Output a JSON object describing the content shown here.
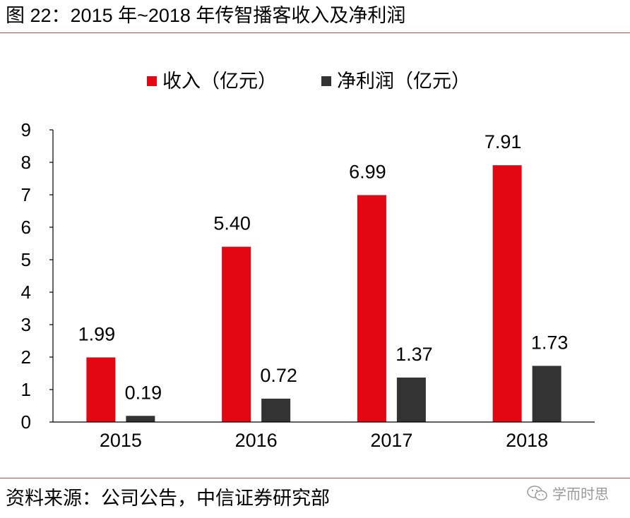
{
  "header": {
    "title": "图 22：2015 年~2018 年传智播客收入及净利润"
  },
  "footer": {
    "source": "资料来源：公司公告，中信证券研究部",
    "watermark": "学而时思"
  },
  "chart_data": {
    "type": "bar",
    "title": "",
    "xlabel": "",
    "ylabel": "",
    "categories": [
      "2015",
      "2016",
      "2017",
      "2018"
    ],
    "series": [
      {
        "name": "收入（亿元）",
        "color": "#e30613",
        "values": [
          1.99,
          5.4,
          6.99,
          7.91
        ],
        "labels": [
          "1.99",
          "5.40",
          "6.99",
          "7.91"
        ]
      },
      {
        "name": "净利润（亿元）",
        "color": "#333333",
        "values": [
          0.19,
          0.72,
          1.37,
          1.73
        ],
        "labels": [
          "0.19",
          "0.72",
          "1.37",
          "1.73"
        ]
      }
    ],
    "ylim": [
      0,
      9
    ],
    "yticks": [
      "0",
      "1",
      "2",
      "3",
      "4",
      "5",
      "6",
      "7",
      "8",
      "9"
    ],
    "grid": false,
    "legend_position": "top"
  }
}
